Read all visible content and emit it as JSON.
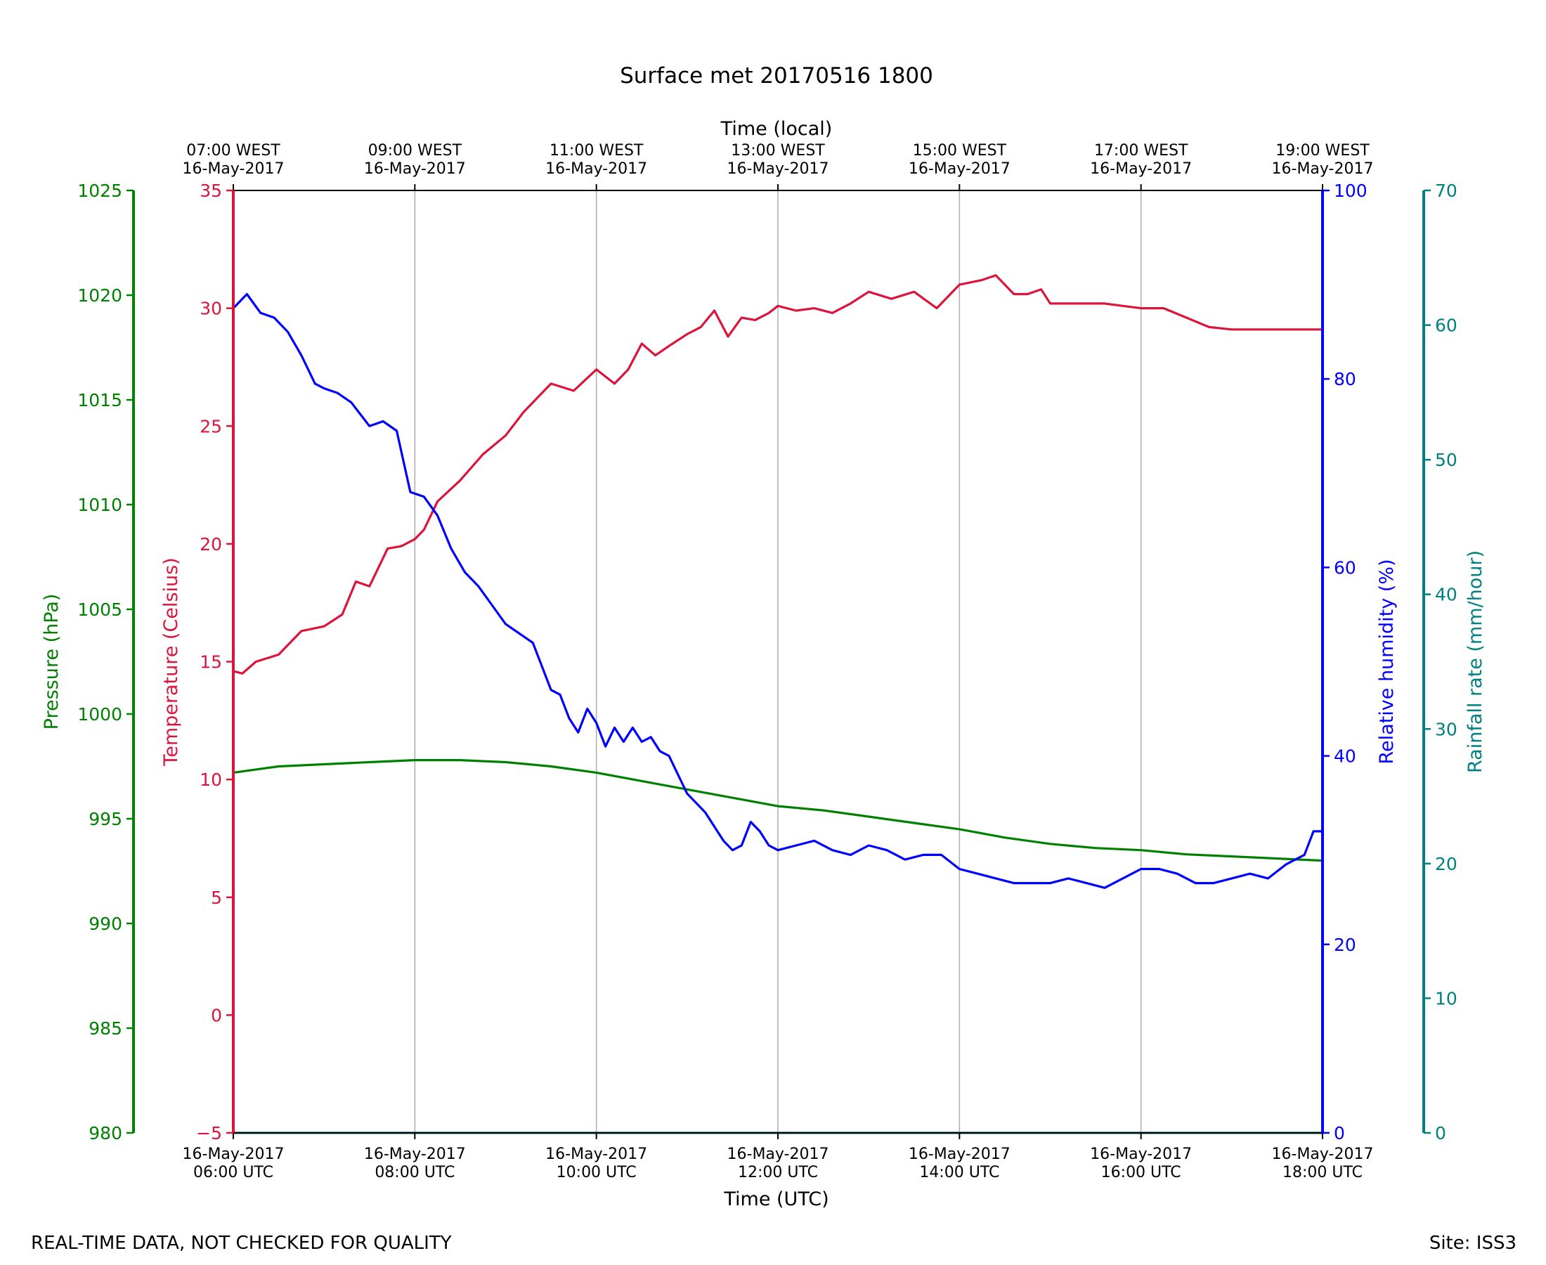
{
  "chart_data": {
    "type": "line",
    "title": "Surface met 20170516 1800",
    "footer_left": "REAL-TIME DATA, NOT CHECKED FOR QUALITY",
    "footer_right": "Site: ISS3",
    "x_axis": {
      "label": "Time (UTC)",
      "range_hours_utc": [
        6,
        18
      ],
      "ticks_hours": [
        6,
        8,
        10,
        12,
        14,
        16,
        18
      ],
      "tick_labels": [
        [
          "16-May-2017",
          "06:00 UTC"
        ],
        [
          "16-May-2017",
          "08:00 UTC"
        ],
        [
          "16-May-2017",
          "10:00 UTC"
        ],
        [
          "16-May-2017",
          "12:00 UTC"
        ],
        [
          "16-May-2017",
          "14:00 UTC"
        ],
        [
          "16-May-2017",
          "16:00 UTC"
        ],
        [
          "16-May-2017",
          "18:00 UTC"
        ]
      ]
    },
    "x_axis_top": {
      "label": "Time (local)",
      "tick_labels": [
        [
          "07:00 WEST",
          "16-May-2017"
        ],
        [
          "09:00 WEST",
          "16-May-2017"
        ],
        [
          "11:00 WEST",
          "16-May-2017"
        ],
        [
          "13:00 WEST",
          "16-May-2017"
        ],
        [
          "15:00 WEST",
          "16-May-2017"
        ],
        [
          "17:00 WEST",
          "16-May-2017"
        ],
        [
          "19:00 WEST",
          "16-May-2017"
        ]
      ]
    },
    "y_axes": {
      "pressure": {
        "label": "Pressure (hPa)",
        "range": [
          980,
          1025
        ],
        "ticks": [
          980,
          985,
          990,
          995,
          1000,
          1005,
          1010,
          1015,
          1020,
          1025
        ],
        "color": "#008000"
      },
      "temperature": {
        "label": "Temperature (Celsius)",
        "range": [
          -5,
          35
        ],
        "ticks": [
          -5,
          0,
          5,
          10,
          15,
          20,
          25,
          30,
          35
        ],
        "tick_labels": [
          "−5",
          "0",
          "5",
          "10",
          "15",
          "20",
          "25",
          "30",
          "35"
        ],
        "color": "#dc143c"
      },
      "humidity": {
        "label": "Relative humidity (%)",
        "range": [
          0,
          100
        ],
        "ticks": [
          0,
          20,
          40,
          60,
          80,
          100
        ],
        "color": "#0000ff"
      },
      "rainfall": {
        "label": "Rainfall rate (mm/hour)",
        "range": [
          0,
          70
        ],
        "ticks": [
          0,
          10,
          20,
          30,
          40,
          50,
          60,
          70
        ],
        "color": "#008080"
      }
    },
    "series": [
      {
        "name": "Temperature",
        "axis": "temperature",
        "color": "#dc143c",
        "x": [
          6.0,
          6.1,
          6.25,
          6.5,
          6.75,
          7.0,
          7.2,
          7.35,
          7.5,
          7.7,
          7.85,
          8.0,
          8.1,
          8.25,
          8.5,
          8.75,
          9.0,
          9.2,
          9.5,
          9.75,
          10.0,
          10.2,
          10.35,
          10.5,
          10.65,
          10.8,
          11.0,
          11.15,
          11.3,
          11.45,
          11.6,
          11.75,
          11.9,
          12.0,
          12.2,
          12.4,
          12.6,
          12.8,
          13.0,
          13.25,
          13.5,
          13.75,
          14.0,
          14.25,
          14.4,
          14.6,
          14.75,
          14.9,
          15.0,
          15.2,
          15.4,
          15.6,
          15.8,
          16.0,
          16.25,
          16.5,
          16.75,
          17.0,
          17.25,
          17.5,
          17.75,
          18.0
        ],
        "y": [
          14.6,
          14.5,
          15.0,
          15.3,
          16.3,
          16.5,
          17.0,
          18.4,
          18.2,
          19.8,
          19.9,
          20.2,
          20.6,
          21.8,
          22.7,
          23.8,
          24.6,
          25.6,
          26.8,
          26.5,
          27.4,
          26.8,
          27.4,
          28.5,
          28.0,
          28.4,
          28.9,
          29.2,
          29.9,
          28.8,
          29.6,
          29.5,
          29.8,
          30.1,
          29.9,
          30.0,
          29.8,
          30.2,
          30.7,
          30.4,
          30.7,
          30.0,
          31.0,
          31.2,
          31.4,
          30.6,
          30.6,
          30.8,
          30.2,
          30.2,
          30.2,
          30.2,
          30.1,
          30.0,
          30.0,
          29.6,
          29.2,
          29.1,
          29.1,
          29.1,
          29.1,
          29.1
        ]
      },
      {
        "name": "Relative humidity",
        "axis": "humidity",
        "color": "#0000ff",
        "x": [
          6.0,
          6.15,
          6.3,
          6.45,
          6.6,
          6.75,
          6.9,
          7.0,
          7.15,
          7.3,
          7.5,
          7.65,
          7.8,
          7.95,
          8.1,
          8.25,
          8.4,
          8.55,
          8.7,
          8.85,
          9.0,
          9.15,
          9.3,
          9.5,
          9.6,
          9.7,
          9.8,
          9.9,
          10.0,
          10.1,
          10.2,
          10.3,
          10.4,
          10.5,
          10.6,
          10.7,
          10.8,
          10.9,
          11.0,
          11.1,
          11.2,
          11.3,
          11.4,
          11.5,
          11.6,
          11.7,
          11.8,
          11.9,
          12.0,
          12.2,
          12.4,
          12.6,
          12.8,
          13.0,
          13.2,
          13.4,
          13.6,
          13.8,
          14.0,
          14.2,
          14.4,
          14.6,
          14.8,
          15.0,
          15.2,
          15.4,
          15.6,
          15.8,
          16.0,
          16.2,
          16.4,
          16.6,
          16.8,
          17.0,
          17.2,
          17.4,
          17.6,
          17.8,
          17.9,
          18.0
        ],
        "y": [
          87.5,
          89.0,
          87.0,
          86.5,
          85.0,
          82.5,
          79.5,
          79.0,
          78.5,
          77.5,
          75.0,
          75.5,
          74.5,
          68.0,
          67.5,
          65.5,
          62.0,
          59.5,
          58.0,
          56.0,
          54.0,
          53.0,
          52.0,
          47.0,
          46.5,
          44.0,
          42.5,
          45.0,
          43.5,
          41.0,
          43.0,
          41.5,
          43.0,
          41.5,
          42.0,
          40.5,
          40.0,
          38.0,
          36.0,
          35.0,
          34.0,
          32.5,
          31.0,
          30.0,
          30.5,
          33.0,
          32.0,
          30.5,
          30.0,
          30.5,
          31.0,
          30.0,
          29.5,
          30.5,
          30.0,
          29.0,
          29.5,
          29.5,
          28.0,
          27.5,
          27.0,
          26.5,
          26.5,
          26.5,
          27.0,
          26.5,
          26.0,
          27.0,
          28.0,
          28.0,
          27.5,
          26.5,
          26.5,
          27.0,
          27.5,
          27.0,
          28.5,
          29.5,
          32.0,
          32.0
        ]
      },
      {
        "name": "Pressure",
        "axis": "pressure",
        "color": "#008000",
        "x": [
          6.0,
          6.5,
          7.0,
          7.5,
          8.0,
          8.5,
          9.0,
          9.5,
          10.0,
          10.5,
          11.0,
          11.5,
          12.0,
          12.5,
          13.0,
          13.5,
          14.0,
          14.5,
          15.0,
          15.5,
          16.0,
          16.5,
          17.0,
          17.5,
          18.0
        ],
        "y": [
          997.2,
          997.5,
          997.6,
          997.7,
          997.8,
          997.8,
          997.7,
          997.5,
          997.2,
          996.8,
          996.4,
          996.0,
          995.6,
          995.4,
          995.1,
          994.8,
          994.5,
          994.1,
          993.8,
          993.6,
          993.5,
          993.3,
          993.2,
          993.1,
          993.0
        ]
      },
      {
        "name": "Rainfall rate",
        "axis": "rainfall",
        "color": "#008080",
        "x": [
          6.0,
          18.0
        ],
        "y": [
          0.0,
          0.0
        ]
      }
    ]
  }
}
